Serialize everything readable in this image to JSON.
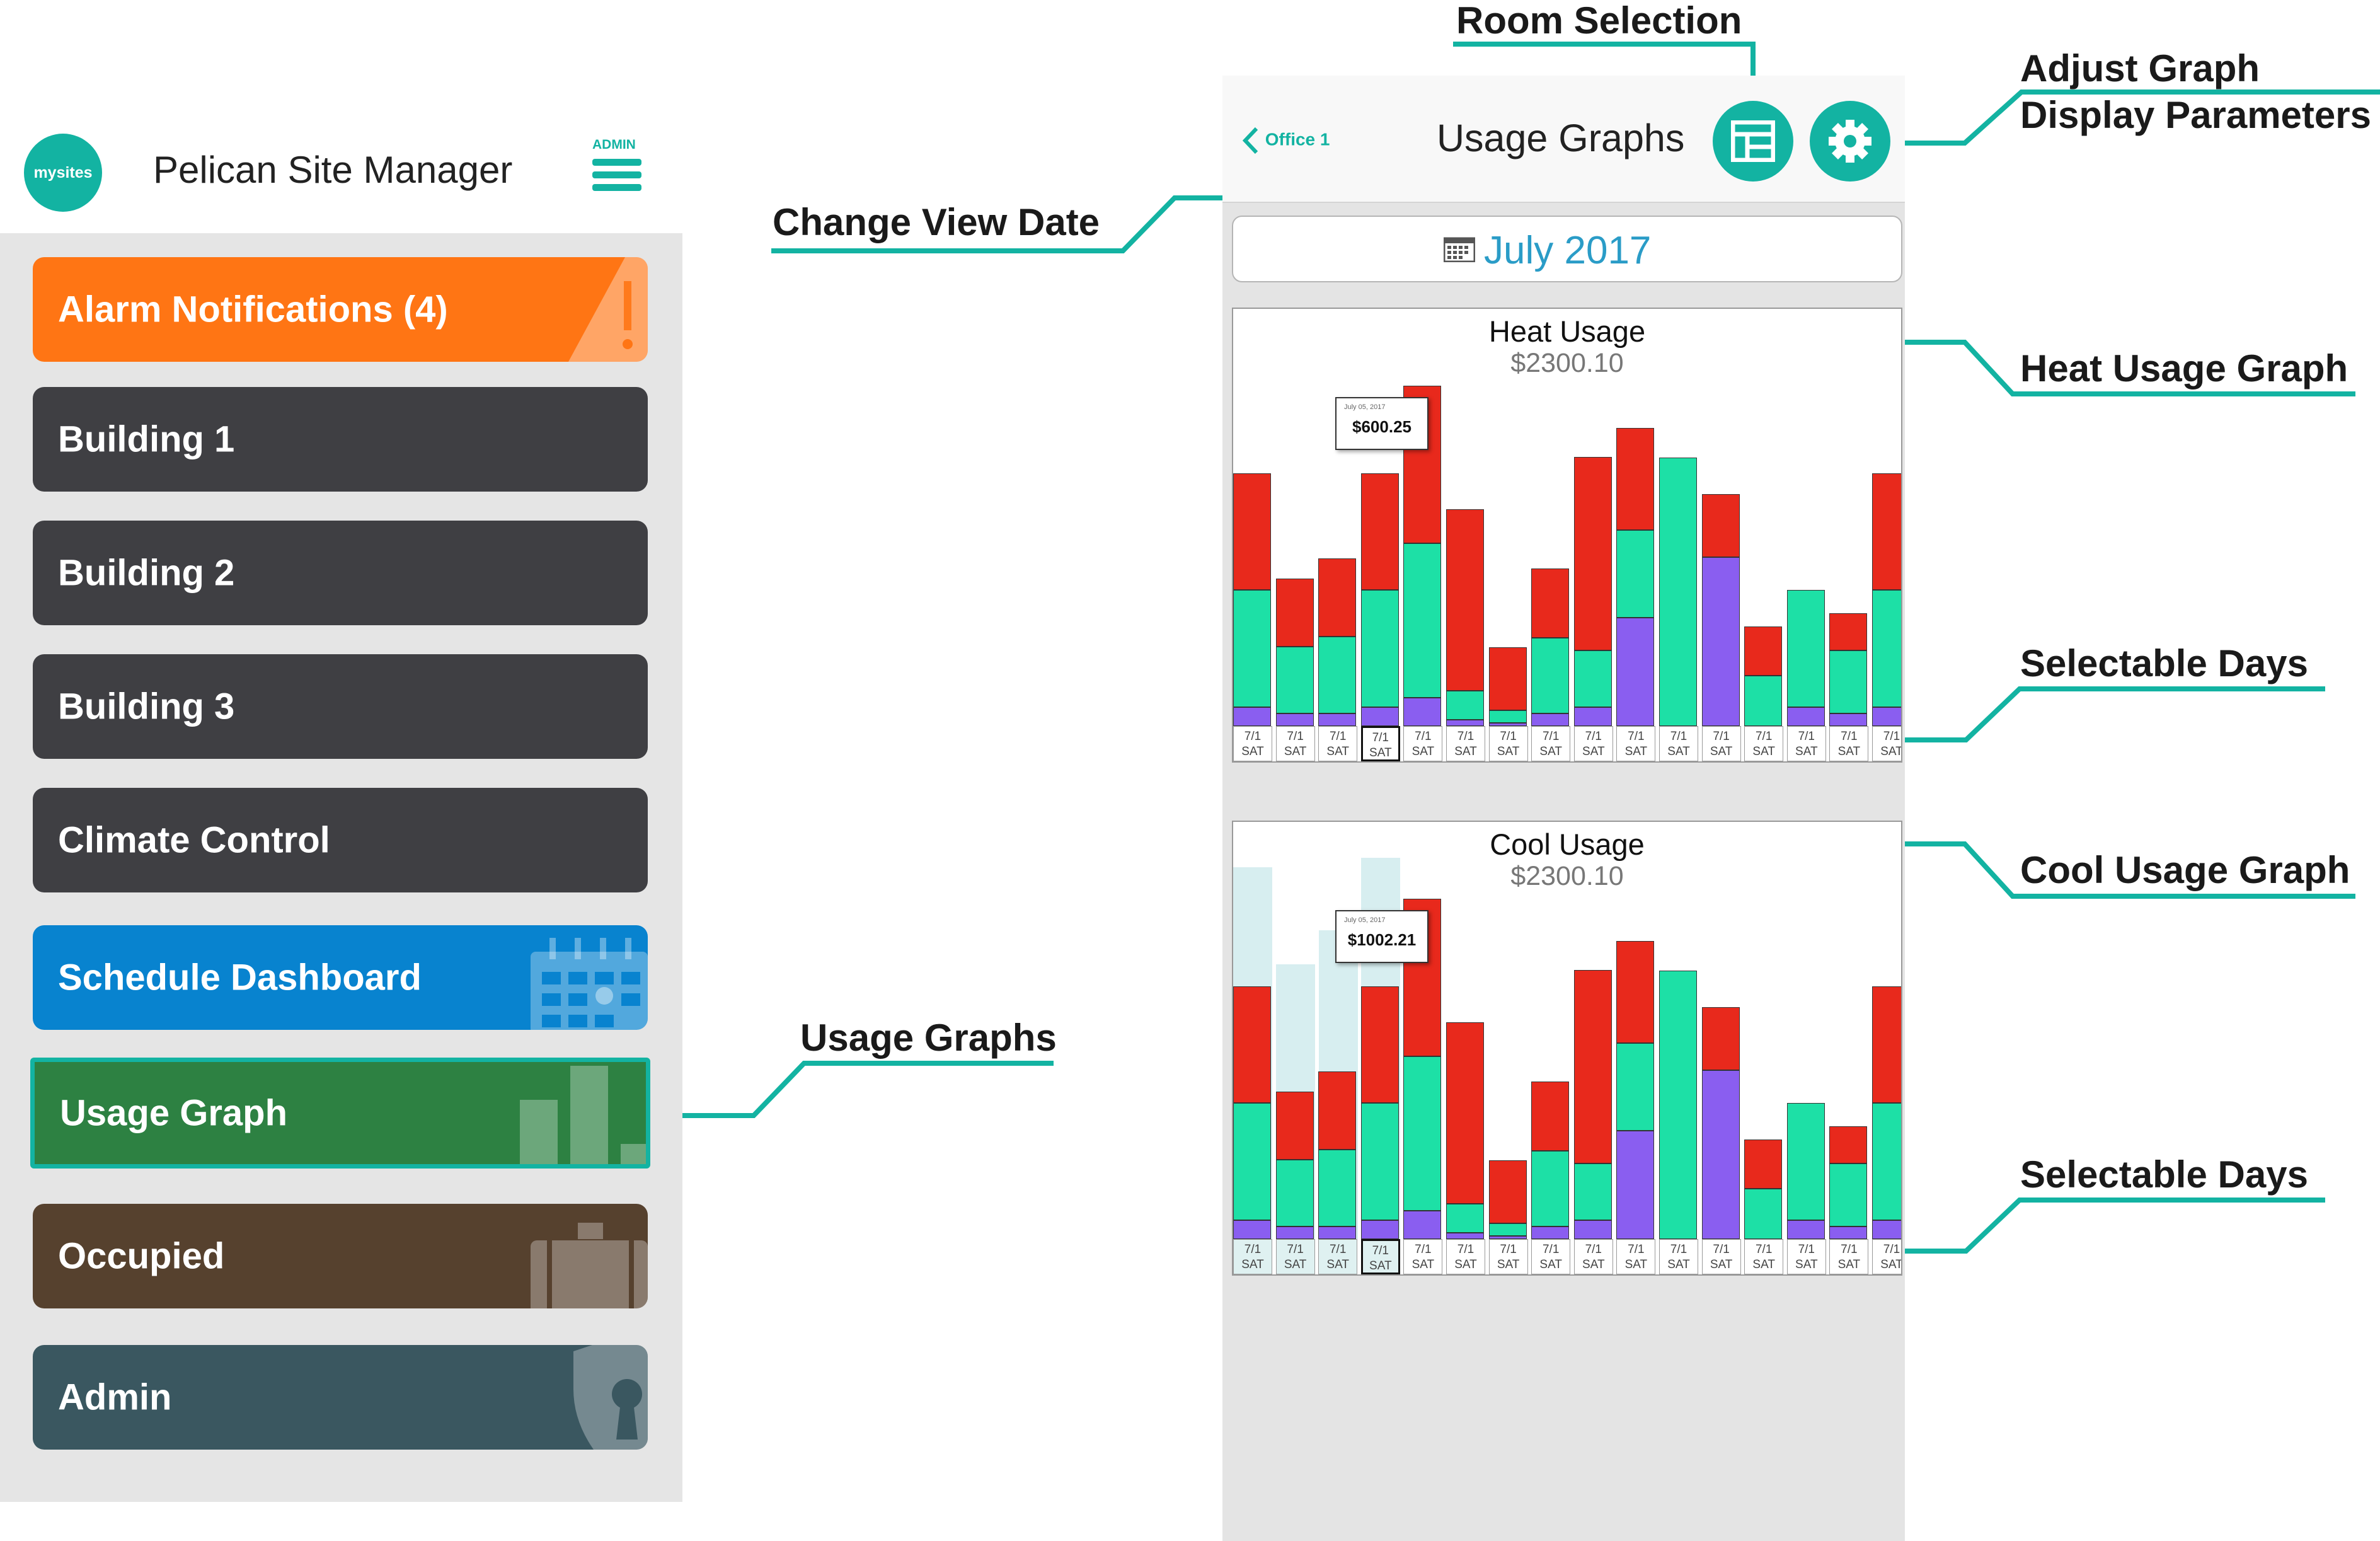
{
  "app": {
    "logo_text": "mysites",
    "title": "Pelican Site Manager",
    "admin_label": "ADMIN"
  },
  "menu": [
    {
      "label": "Alarm Notifications (4)",
      "color": "#ff7514",
      "icon": "warning-icon"
    },
    {
      "label": "Building 1",
      "color": "#3f3f43",
      "icon": ""
    },
    {
      "label": "Building 2",
      "color": "#3f3f43",
      "icon": ""
    },
    {
      "label": "Building 3",
      "color": "#3f3f43",
      "icon": ""
    },
    {
      "label": "Climate Control",
      "color": "#3f3f43",
      "icon": ""
    },
    {
      "label": "Schedule Dashboard",
      "color": "#0883cf",
      "icon": "calendar-icon"
    },
    {
      "label": "Usage Graph",
      "color": "#2d8142",
      "icon": "bar-chart-icon",
      "selected": true
    },
    {
      "label": "Occupied",
      "color": "#56412e",
      "icon": "briefcase-icon"
    },
    {
      "label": "Admin",
      "color": "#3a5760",
      "icon": "shield-lock-icon"
    }
  ],
  "phone": {
    "back_label": "Office 1",
    "title": "Usage Graphs",
    "date_label": "July 2017",
    "accent": "#13b3a2"
  },
  "heat_graph": {
    "title": "Heat Usage",
    "total": "$2300.10",
    "tooltip_date": "July 05, 2017",
    "tooltip_value": "$600.25"
  },
  "cool_graph": {
    "title": "Cool Usage",
    "total": "$2300.10",
    "tooltip_date": "July 05, 2017",
    "tooltip_value": "$1002.21"
  },
  "day_label_top": "7/1",
  "day_label_bottom": "SAT",
  "colors": {
    "red": "#e8291c",
    "green": "#1de0a6",
    "purple": "#8a5ef0",
    "teal": "#13b3a2"
  },
  "callouts": {
    "room_selection": "Room Selection",
    "adjust_graph_1": "Adjust Graph",
    "adjust_graph_2": "Display Parameters",
    "change_view_date": "Change View Date",
    "heat_usage_graph": "Heat Usage Graph",
    "selectable_days_1": "Selectable Days",
    "cool_usage_graph": "Cool Usage Graph",
    "selectable_days_2": "Selectable Days",
    "usage_graphs": "Usage Graphs"
  }
}
